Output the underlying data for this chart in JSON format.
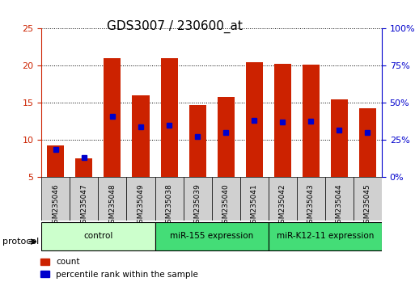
{
  "title": "GDS3007 / 230600_at",
  "samples": [
    "GSM235046",
    "GSM235047",
    "GSM235048",
    "GSM235049",
    "GSM235038",
    "GSM235039",
    "GSM235040",
    "GSM235041",
    "GSM235042",
    "GSM235043",
    "GSM235044",
    "GSM235045"
  ],
  "red_heights": [
    9.3,
    7.5,
    21.0,
    16.0,
    21.0,
    14.7,
    15.8,
    20.5,
    20.3,
    20.2,
    15.5,
    14.3
  ],
  "blue_positions": [
    8.7,
    7.7,
    13.2,
    11.8,
    12.0,
    10.5,
    11.0,
    12.7,
    12.4,
    12.5,
    11.4,
    11.0
  ],
  "bar_color": "#cc2200",
  "blue_color": "#0000cc",
  "ylim_left": [
    5,
    25
  ],
  "ylim_right": [
    0,
    100
  ],
  "yticks_left": [
    5,
    10,
    15,
    20,
    25
  ],
  "yticks_right": [
    0,
    25,
    50,
    75,
    100
  ],
  "ytick_labels_right": [
    "0%",
    "25%",
    "50%",
    "75%",
    "100%"
  ],
  "groups": [
    {
      "label": "control",
      "start": 0,
      "end": 4,
      "color": "#ccffcc"
    },
    {
      "label": "miR-155 expression",
      "start": 4,
      "end": 8,
      "color": "#00cc44"
    },
    {
      "label": "miR-K12-11 expression",
      "start": 8,
      "end": 12,
      "color": "#00cc44"
    }
  ],
  "protocol_label": "protocol",
  "legend_count": "count",
  "legend_pct": "percentile rank within the sample",
  "bar_width": 0.6,
  "background_color": "#ffffff",
  "plot_bg_color": "#ffffff",
  "grid_color": "#000000",
  "title_fontsize": 11,
  "axis_label_fontsize": 8,
  "tick_fontsize": 8
}
